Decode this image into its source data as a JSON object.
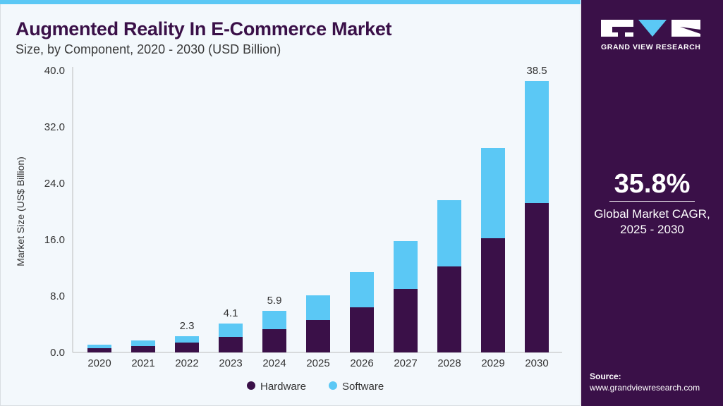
{
  "header": {
    "title": "Augmented Reality In E-Commerce Market",
    "subtitle": "Size, by Component, 2020 - 2030 (USD Billion)"
  },
  "sidebar": {
    "brand": "GRAND VIEW RESEARCH",
    "cagr_value": "35.8%",
    "cagr_label_1": "Global Market CAGR,",
    "cagr_label_2": "2025 - 2030",
    "source_label": "Source:",
    "source_url": "www.grandviewresearch.com"
  },
  "colors": {
    "hardware": "#3a1048",
    "software": "#5bc8f5",
    "panel": "#3a1048"
  },
  "chart_data": {
    "type": "bar",
    "stacked": true,
    "title": "Augmented Reality In E-Commerce Market",
    "ylabel": "Market Size (US$ Billion)",
    "xlabel": "",
    "ylim": [
      0,
      40
    ],
    "yticks": [
      "0.0",
      "8.0",
      "16.0",
      "24.0",
      "32.0",
      "40.0"
    ],
    "categories": [
      "2020",
      "2021",
      "2022",
      "2023",
      "2024",
      "2025",
      "2026",
      "2027",
      "2028",
      "2029",
      "2030"
    ],
    "series": [
      {
        "name": "Hardware",
        "values": [
          0.6,
          0.9,
          1.4,
          2.2,
          3.3,
          4.6,
          6.4,
          9.0,
          12.2,
          16.2,
          21.2
        ]
      },
      {
        "name": "Software",
        "values": [
          0.5,
          0.8,
          0.9,
          1.9,
          2.6,
          3.5,
          5.0,
          6.8,
          9.4,
          12.8,
          17.3
        ]
      }
    ],
    "data_labels": {
      "2022": "2.3",
      "2023": "4.1",
      "2024": "5.9",
      "2030": "38.5"
    },
    "legend": "bottom",
    "grid": false
  }
}
